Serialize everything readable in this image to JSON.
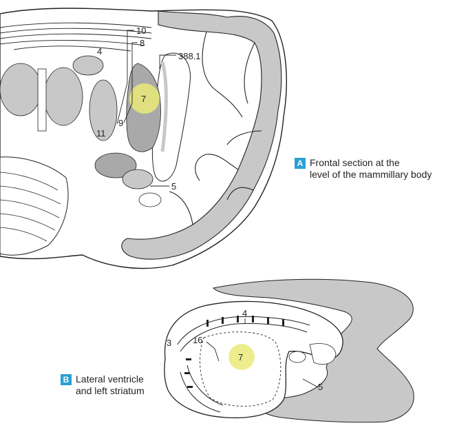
{
  "panel_a": {
    "badge": "A",
    "caption_line1": "Frontal section at the",
    "caption_line2": "level of the mammillary body",
    "labels": {
      "l10": "10",
      "l8": "8",
      "l3881": "388.1",
      "l4": "4",
      "l7": "7",
      "l9": "9",
      "l11": "11",
      "l5": "5"
    }
  },
  "panel_b": {
    "badge": "B",
    "caption_line1": "Lateral ventricle",
    "caption_line2": "and left striatum",
    "labels": {
      "l4": "4",
      "l3": "3",
      "l16": "16",
      "l7": "7",
      "l5": "5"
    }
  },
  "colors": {
    "badge_bg": "#2a9fd6",
    "gray_matter": "#c8c8c8",
    "dark_gray": "#a9a9a9",
    "highlight": "#eaea7a",
    "line": "#231f20"
  }
}
